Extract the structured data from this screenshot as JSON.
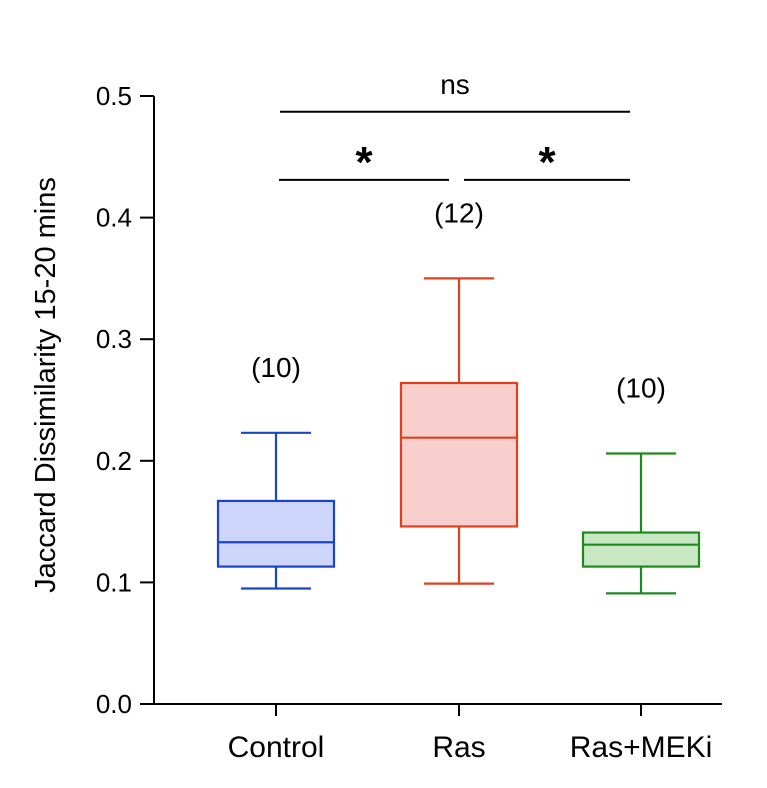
{
  "chart_data": {
    "type": "box",
    "title": "",
    "xlabel": "",
    "ylabel": "Jaccard Dissimilarity 15-20 mins",
    "ylim": [
      0,
      0.5
    ],
    "yticks": [
      0.0,
      0.1,
      0.2,
      0.3,
      0.4,
      0.5
    ],
    "ytick_labels": [
      "0.0",
      "0.1",
      "0.2",
      "0.3",
      "0.4",
      "0.5"
    ],
    "categories": [
      "Control",
      "Ras",
      "Ras+MEKi"
    ],
    "series": [
      {
        "name": "Control",
        "n_label": "(10)",
        "min": 0.095,
        "q1": 0.113,
        "median": 0.133,
        "q3": 0.167,
        "max": 0.223,
        "color": "#1a44c4",
        "fill": "#cdd5fa"
      },
      {
        "name": "Ras",
        "n_label": "(12)",
        "min": 0.099,
        "q1": 0.146,
        "median": 0.219,
        "q3": 0.264,
        "max": 0.35,
        "color": "#e0401e",
        "fill": "#f9cfcd"
      },
      {
        "name": "Ras+MEKi",
        "n_label": "(10)",
        "min": 0.091,
        "q1": 0.113,
        "median": 0.131,
        "q3": 0.141,
        "max": 0.206,
        "color": "#1e8a1e",
        "fill": "#c8e8c4"
      }
    ],
    "significance": [
      {
        "from": "Control",
        "to": "Ras",
        "label": "*",
        "y": 0.431
      },
      {
        "from": "Ras",
        "to": "Ras+MEKi",
        "label": "*",
        "y": 0.431
      },
      {
        "from": "Control",
        "to": "Ras+MEKi",
        "label": "ns",
        "y": 0.487
      }
    ]
  }
}
